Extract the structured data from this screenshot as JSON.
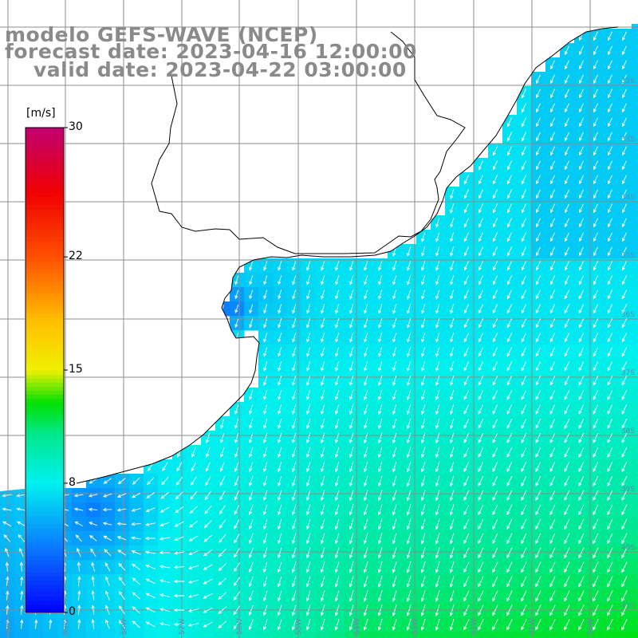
{
  "title": {
    "line1": "modelo GEFS-WAVE (NCEP)",
    "line2": "forecast date: 2023-04-16 12:00:00",
    "line3": "valid date: 2023-04-22 03:00:00"
  },
  "colorbar": {
    "unit_label": "[m/s]",
    "ticks": [
      {
        "value": 30,
        "label": "30"
      },
      {
        "value": 22,
        "label": "22"
      },
      {
        "value": 15,
        "label": "15"
      },
      {
        "value": 8,
        "label": "8"
      },
      {
        "value": 0,
        "label": "0"
      }
    ],
    "min": 0,
    "max": 30,
    "stops": [
      {
        "value": 0,
        "color": "#0000ff"
      },
      {
        "value": 4,
        "color": "#0a78ff"
      },
      {
        "value": 8,
        "color": "#00f0f0"
      },
      {
        "value": 11,
        "color": "#00e890"
      },
      {
        "value": 13,
        "color": "#00e000"
      },
      {
        "value": 15,
        "color": "#f0f000"
      },
      {
        "value": 18,
        "color": "#ffc000"
      },
      {
        "value": 22,
        "color": "#ff5000"
      },
      {
        "value": 26,
        "color": "#f00000"
      },
      {
        "value": 30,
        "color": "#c00070"
      }
    ]
  },
  "map": {
    "latitudes": [
      "31S",
      "32S",
      "33S",
      "34S",
      "35S",
      "36S",
      "37S",
      "38S",
      "39S",
      "40S",
      "41S"
    ],
    "longitudes": [
      "60W",
      "59W",
      "58W",
      "57W",
      "56W",
      "55W",
      "54W",
      "53W",
      "52W",
      "51W",
      "50W"
    ],
    "land_color": "#ffffff",
    "coastline_color": "#000000",
    "grid_color": "#8c8c8c",
    "arrow_color": "#ffffff",
    "variable": "wind speed and direction"
  }
}
